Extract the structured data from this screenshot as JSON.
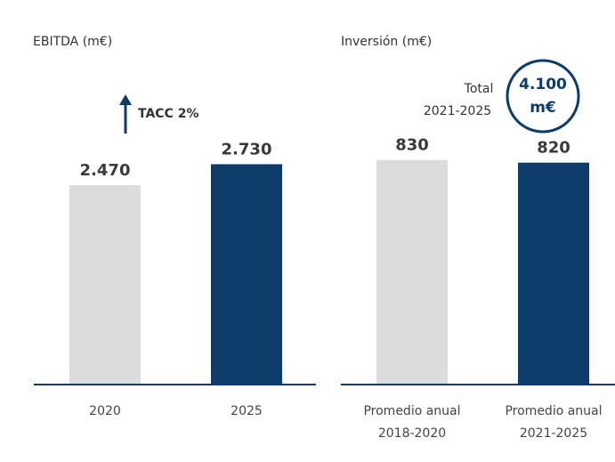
{
  "chart_data": [
    {
      "type": "bar",
      "title": "EBITDA (m€)",
      "categories": [
        "2020",
        "2025"
      ],
      "values": [
        2470,
        2730
      ],
      "value_labels": [
        "2.470",
        "2.730"
      ],
      "colors": [
        "#dcdcdc",
        "#0d3c6b"
      ],
      "ylim": [
        0,
        3000
      ],
      "annotation": "TACC 2%"
    },
    {
      "type": "bar",
      "title": "Inversión (m€)",
      "categories": [
        [
          "Promedio anual",
          "2018-2020"
        ],
        [
          "Promedio anual",
          "2021-2025"
        ]
      ],
      "values": [
        830,
        820
      ],
      "value_labels": [
        "830",
        "820"
      ],
      "colors": [
        "#dcdcdc",
        "#0d3c6b"
      ],
      "ylim": [
        0,
        1000
      ],
      "annotation": [
        "Total",
        "2021-2025"
      ],
      "total": [
        "4.100",
        "m€"
      ]
    }
  ]
}
